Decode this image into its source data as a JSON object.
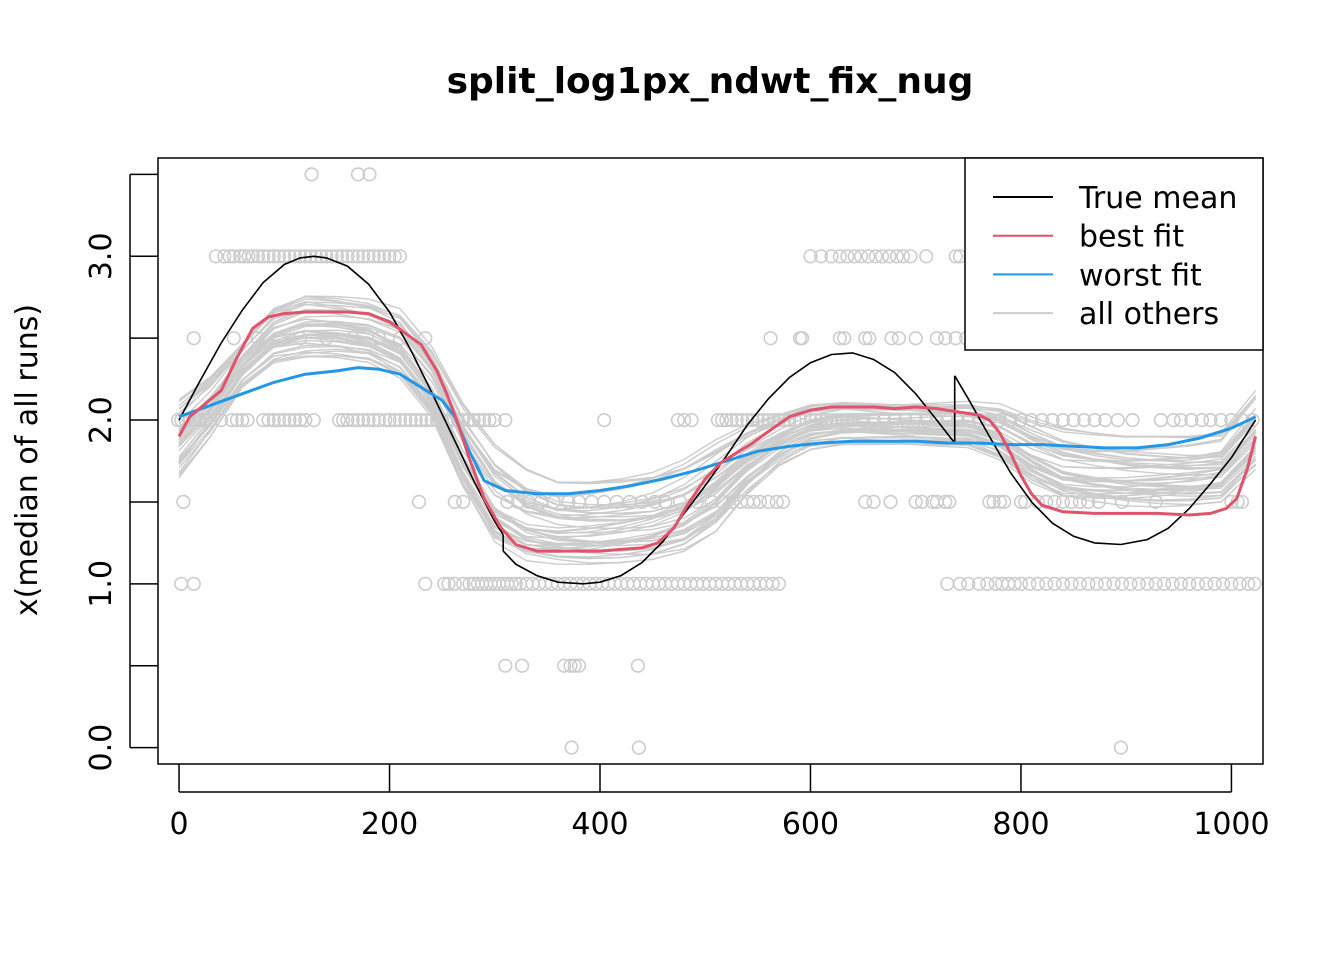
{
  "chart_data": {
    "type": "line",
    "title": "split_log1px_ndwt_fix_nug",
    "xlabel": "",
    "ylabel": "x(median of all runs)",
    "xlim": [
      -20,
      1030
    ],
    "ylim": [
      -0.1,
      3.6
    ],
    "x_ticks": [
      0,
      200,
      400,
      600,
      800,
      1000
    ],
    "x_tick_labels": [
      "0",
      "200",
      "400",
      "600",
      "800",
      "1000"
    ],
    "y_ticks": [
      0,
      0.5,
      1,
      1.5,
      2,
      2.5,
      3,
      3.5
    ],
    "y_tick_labels": [
      "0.0",
      "",
      "1.0",
      "",
      "2.0",
      "",
      "3.0",
      ""
    ],
    "grid": false,
    "legend_position": "top-right",
    "legend": [
      {
        "name": "True mean",
        "color": "#000000"
      },
      {
        "name": "best fit",
        "color": "#DF536B"
      },
      {
        "name": "worst fit",
        "color": "#2297E6"
      },
      {
        "name": "all others",
        "color": "#CCCCCC"
      }
    ],
    "series": [
      {
        "name": "True mean",
        "color": "#000000",
        "segments": [
          {
            "x": [
              0,
              20,
              40,
              60,
              80,
              100,
              115,
              128,
              140,
              160,
              180,
              200,
              220,
              240,
              260,
              280,
              300,
              308
            ],
            "y": [
              2.0,
              2.24,
              2.47,
              2.67,
              2.84,
              2.95,
              2.99,
              3.0,
              2.99,
              2.94,
              2.83,
              2.66,
              2.43,
              2.17,
              1.9,
              1.63,
              1.38,
              1.3
            ]
          },
          {
            "x": [
              308,
              320,
              340,
              360,
              384,
              400,
              420,
              440,
              460,
              480,
              500,
              520,
              540,
              560,
              580,
              600,
              620,
              640,
              660,
              680,
              700,
              720,
              737
            ],
            "y": [
              1.2,
              1.12,
              1.05,
              1.01,
              1.0,
              1.01,
              1.05,
              1.13,
              1.26,
              1.43,
              1.6,
              1.78,
              1.97,
              2.13,
              2.26,
              2.35,
              2.4,
              2.41,
              2.37,
              2.29,
              2.16,
              2.0,
              1.86
            ]
          },
          {
            "x": [
              737,
              750,
              770,
              790,
              810,
              830,
              850,
              870,
              895,
              920,
              940,
              960,
              980,
              1000,
              1023
            ],
            "y": [
              2.27,
              2.13,
              1.9,
              1.68,
              1.5,
              1.37,
              1.29,
              1.25,
              1.24,
              1.27,
              1.34,
              1.46,
              1.61,
              1.77,
              2.0
            ]
          }
        ]
      },
      {
        "name": "best fit",
        "color": "#DF536B",
        "x": [
          0,
          10,
          25,
          40,
          55,
          70,
          85,
          100,
          120,
          140,
          160,
          180,
          200,
          215,
          230,
          245,
          255,
          265,
          275,
          290,
          305,
          320,
          340,
          360,
          380,
          400,
          420,
          440,
          455,
          470,
          485,
          500,
          515,
          530,
          545,
          560,
          580,
          600,
          620,
          640,
          660,
          680,
          700,
          720,
          740,
          760,
          770,
          780,
          790,
          800,
          810,
          820,
          840,
          870,
          900,
          930,
          960,
          980,
          995,
          1005,
          1015,
          1023
        ],
        "y": [
          1.9,
          2.02,
          2.1,
          2.18,
          2.38,
          2.56,
          2.63,
          2.65,
          2.66,
          2.66,
          2.66,
          2.65,
          2.6,
          2.53,
          2.46,
          2.3,
          2.15,
          1.98,
          1.78,
          1.52,
          1.35,
          1.24,
          1.2,
          1.2,
          1.2,
          1.2,
          1.21,
          1.22,
          1.25,
          1.34,
          1.5,
          1.64,
          1.74,
          1.8,
          1.86,
          1.93,
          2.02,
          2.06,
          2.08,
          2.08,
          2.08,
          2.07,
          2.08,
          2.07,
          2.05,
          2.03,
          2.0,
          1.92,
          1.8,
          1.66,
          1.55,
          1.48,
          1.44,
          1.43,
          1.43,
          1.43,
          1.42,
          1.43,
          1.46,
          1.52,
          1.7,
          1.9
        ]
      },
      {
        "name": "worst fit",
        "color": "#2297E6",
        "x": [
          0,
          30,
          60,
          90,
          120,
          150,
          170,
          190,
          210,
          230,
          250,
          262,
          275,
          290,
          310,
          340,
          370,
          400,
          430,
          460,
          490,
          520,
          550,
          580,
          610,
          640,
          670,
          700,
          730,
          760,
          790,
          820,
          850,
          880,
          910,
          940,
          970,
          1000,
          1023
        ],
        "y": [
          2.02,
          2.09,
          2.16,
          2.23,
          2.28,
          2.3,
          2.32,
          2.31,
          2.28,
          2.2,
          2.12,
          2.02,
          1.82,
          1.63,
          1.57,
          1.55,
          1.55,
          1.57,
          1.6,
          1.64,
          1.69,
          1.75,
          1.81,
          1.84,
          1.86,
          1.87,
          1.87,
          1.87,
          1.86,
          1.86,
          1.85,
          1.85,
          1.84,
          1.83,
          1.83,
          1.85,
          1.89,
          1.95,
          2.02
        ]
      },
      {
        "name": "all others",
        "color": "#CCCCCC",
        "x": [
          0,
          30,
          60,
          90,
          120,
          150,
          180,
          210,
          240,
          270,
          300,
          330,
          360,
          390,
          420,
          450,
          480,
          510,
          540,
          570,
          600,
          630,
          660,
          690,
          720,
          750,
          780,
          810,
          840,
          870,
          900,
          930,
          960,
          990,
          1023
        ],
        "band_low": [
          1.65,
          1.9,
          2.2,
          2.35,
          2.38,
          2.38,
          2.35,
          2.25,
          2.0,
          1.55,
          1.22,
          1.13,
          1.12,
          1.12,
          1.13,
          1.15,
          1.2,
          1.32,
          1.55,
          1.72,
          1.82,
          1.85,
          1.85,
          1.85,
          1.84,
          1.83,
          1.75,
          1.6,
          1.5,
          1.48,
          1.47,
          1.47,
          1.48,
          1.5,
          1.7
        ],
        "band_high": [
          2.15,
          2.3,
          2.5,
          2.72,
          2.8,
          2.78,
          2.75,
          2.68,
          2.45,
          2.1,
          1.85,
          1.7,
          1.62,
          1.62,
          1.64,
          1.68,
          1.76,
          1.88,
          1.98,
          2.05,
          2.12,
          2.14,
          2.13,
          2.12,
          2.12,
          2.12,
          2.1,
          2.02,
          1.95,
          1.92,
          1.9,
          1.9,
          1.9,
          1.92,
          2.18
        ]
      }
    ],
    "points": {
      "name": "observations",
      "color": "#CCCCCC",
      "groups": [
        {
          "x": [
            126,
            170,
            181
          ],
          "y": 3.5
        },
        {
          "x": [
            35,
            43,
            48,
            52,
            58,
            62,
            66,
            70,
            75,
            80,
            85,
            90,
            95,
            100,
            105,
            110,
            115,
            120,
            125,
            130,
            135,
            140,
            145,
            150,
            155,
            160,
            165,
            170,
            175,
            180,
            185,
            190,
            195,
            200,
            205,
            210,
            600,
            610,
            620,
            628,
            635,
            642,
            648,
            655,
            662,
            668,
            675,
            682,
            688,
            695,
            710,
            738,
            742,
            752
          ],
          "y": 3.0
        },
        {
          "x": [
            14,
            52,
            75,
            95,
            115,
            140,
            165,
            190,
            210,
            234,
            562,
            590,
            592,
            628,
            632,
            652,
            656,
            677,
            684,
            700,
            720,
            728,
            738,
            748
          ],
          "y": 2.5
        },
        {
          "x": [
            -1,
            2,
            6,
            10,
            15,
            20,
            25,
            30,
            40,
            50,
            55,
            60,
            65,
            80,
            85,
            90,
            95,
            100,
            105,
            110,
            115,
            120,
            128,
            152,
            156,
            160,
            165,
            170,
            175,
            180,
            185,
            190,
            196,
            200,
            205,
            210,
            215,
            220,
            225,
            230,
            235,
            240,
            245,
            250,
            255,
            260,
            265,
            270,
            275,
            280,
            285,
            290,
            295,
            300,
            310,
            404,
            474,
            480,
            487,
            512,
            516,
            520,
            525,
            530,
            535,
            540,
            545,
            550,
            555,
            560,
            565,
            570,
            575,
            580,
            585,
            590,
            600,
            605,
            610,
            615,
            620,
            625,
            630,
            635,
            640,
            650,
            660,
            670,
            680,
            690,
            700,
            710,
            720,
            730,
            740,
            750,
            760,
            770,
            780,
            790,
            800,
            810,
            820,
            830,
            840,
            850,
            860,
            870,
            880,
            892,
            906,
            933,
            945,
            952,
            962,
            972,
            980,
            990,
            1000,
            1010,
            1020
          ],
          "y": 2.0
        },
        {
          "x": [
            4,
            228,
            262,
            270,
            312,
            322,
            332,
            344,
            356,
            370,
            380,
            392,
            404,
            416,
            428,
            440,
            452,
            462,
            476,
            492,
            506,
            516,
            526,
            534,
            540,
            546,
            552,
            560,
            568,
            574,
            652,
            660,
            676,
            700,
            706,
            716,
            720,
            728,
            732,
            770,
            774,
            780,
            784,
            800,
            804,
            816,
            824,
            832,
            840,
            848,
            856,
            864,
            874,
            896,
            928,
            1000,
            1006,
            1010
          ],
          "y": 1.5
        },
        {
          "x": [
            2,
            14,
            234,
            252,
            256,
            262,
            270,
            276,
            280,
            284,
            288,
            292,
            296,
            300,
            304,
            308,
            312,
            316,
            320,
            324,
            330,
            336,
            342,
            348,
            354,
            360,
            366,
            372,
            378,
            384,
            390,
            396,
            402,
            408,
            414,
            420,
            426,
            432,
            438,
            444,
            450,
            456,
            462,
            468,
            474,
            480,
            486,
            492,
            498,
            504,
            510,
            516,
            522,
            528,
            534,
            540,
            546,
            552,
            558,
            564,
            570,
            730,
            742,
            750,
            760,
            768,
            776,
            782,
            788,
            794,
            800,
            808,
            816,
            824,
            832,
            840,
            848,
            856,
            864,
            872,
            880,
            888,
            896,
            904,
            912,
            920,
            928,
            936,
            944,
            952,
            960,
            968,
            976,
            984,
            992,
            1000,
            1008,
            1016,
            1022
          ],
          "y": 1.0
        },
        {
          "x": [
            310,
            326,
            366,
            372,
            376,
            380,
            436
          ],
          "y": 0.5
        },
        {
          "x": [
            373,
            437,
            895
          ],
          "y": 0.0
        }
      ]
    }
  }
}
